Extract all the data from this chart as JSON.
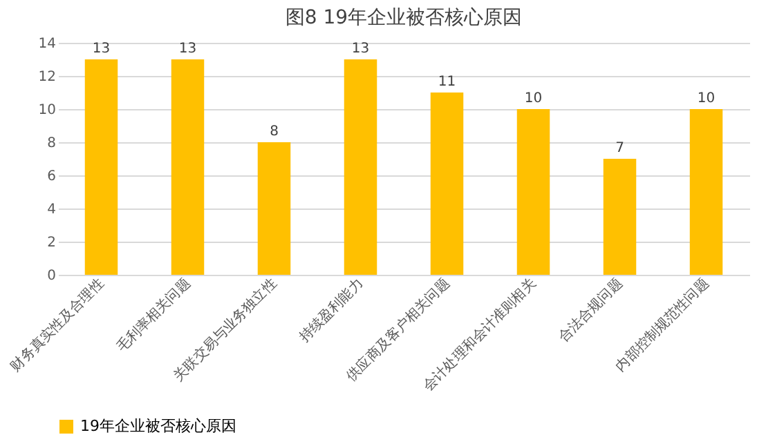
{
  "chart_data": {
    "type": "bar",
    "title": "图8    19年企业被否核心原因",
    "categories": [
      "财务真实性及合理性",
      "毛利率相关问题",
      "关联交易与业务独立性",
      "持续盈利能力",
      "供应商及客户相关问题",
      "会计处理和会计准则相关",
      "合法合规问题",
      "内部控制规范性问题"
    ],
    "series": [
      {
        "name": "19年企业被否核心原因",
        "color": "#ffc000",
        "values": [
          13,
          13,
          8,
          13,
          11,
          10,
          7,
          10
        ]
      }
    ],
    "ylim": [
      0,
      14
    ],
    "yticks": [
      0,
      2,
      4,
      6,
      8,
      10,
      12,
      14
    ],
    "grid": "y",
    "legend": "bottom",
    "data_labels": true
  }
}
